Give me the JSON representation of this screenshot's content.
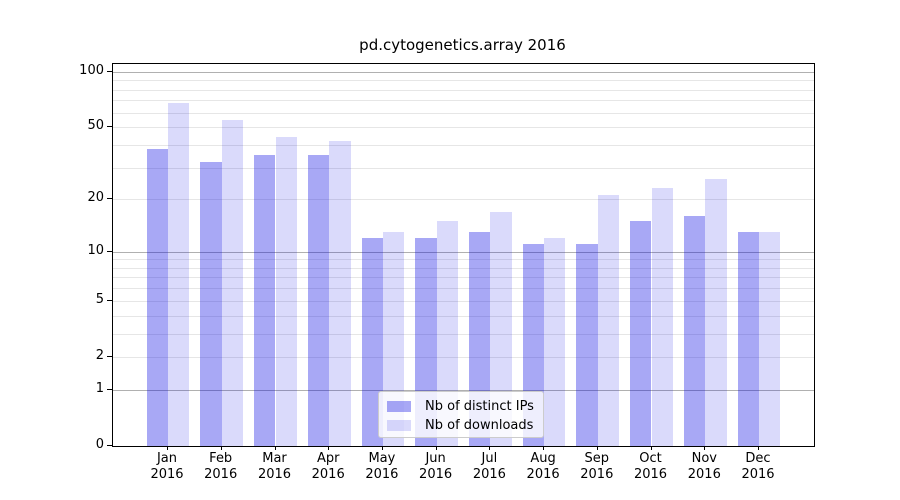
{
  "chart_data": {
    "type": "bar",
    "title": "pd.cytogenetics.array 2016",
    "categories": [
      "Jan",
      "Feb",
      "Mar",
      "Apr",
      "May",
      "Jun",
      "Jul",
      "Aug",
      "Sep",
      "Oct",
      "Nov",
      "Dec"
    ],
    "category_year": "2016",
    "series": [
      {
        "name": "Nb of distinct IPs",
        "color": "rgba(6,6,226,0.35)",
        "values": [
          38,
          32,
          35,
          35,
          12,
          12,
          13,
          11,
          11,
          15,
          16,
          13
        ]
      },
      {
        "name": "Nb of downloads",
        "color": "rgba(6,6,226,0.15)",
        "values": [
          68,
          55,
          44,
          42,
          13,
          15,
          17,
          12,
          21,
          23,
          26,
          13
        ]
      }
    ],
    "yscale": "log10(value+1)",
    "ylim": [
      0,
      110
    ],
    "yticks": {
      "values": [
        100,
        50,
        20,
        10,
        5,
        2,
        1,
        0
      ],
      "labels": [
        "100",
        "50",
        "20",
        "10",
        "5",
        "2",
        "1",
        "0"
      ]
    },
    "gridlines": {
      "major": [
        1,
        10,
        100
      ],
      "minor": [
        2,
        5,
        20,
        50,
        3,
        4,
        6,
        7,
        8,
        9,
        30,
        40,
        60,
        70,
        80,
        90
      ]
    },
    "grid": "on",
    "legend_position": "lower center",
    "colors": {
      "bar_distinct_ips": "rgba(6,6,226,0.35)",
      "bar_downloads": "rgba(6,6,226,0.15)",
      "major_grid": "#b0b0b0",
      "minor_grid": "#e6e6e6",
      "frame": "#000000"
    }
  }
}
